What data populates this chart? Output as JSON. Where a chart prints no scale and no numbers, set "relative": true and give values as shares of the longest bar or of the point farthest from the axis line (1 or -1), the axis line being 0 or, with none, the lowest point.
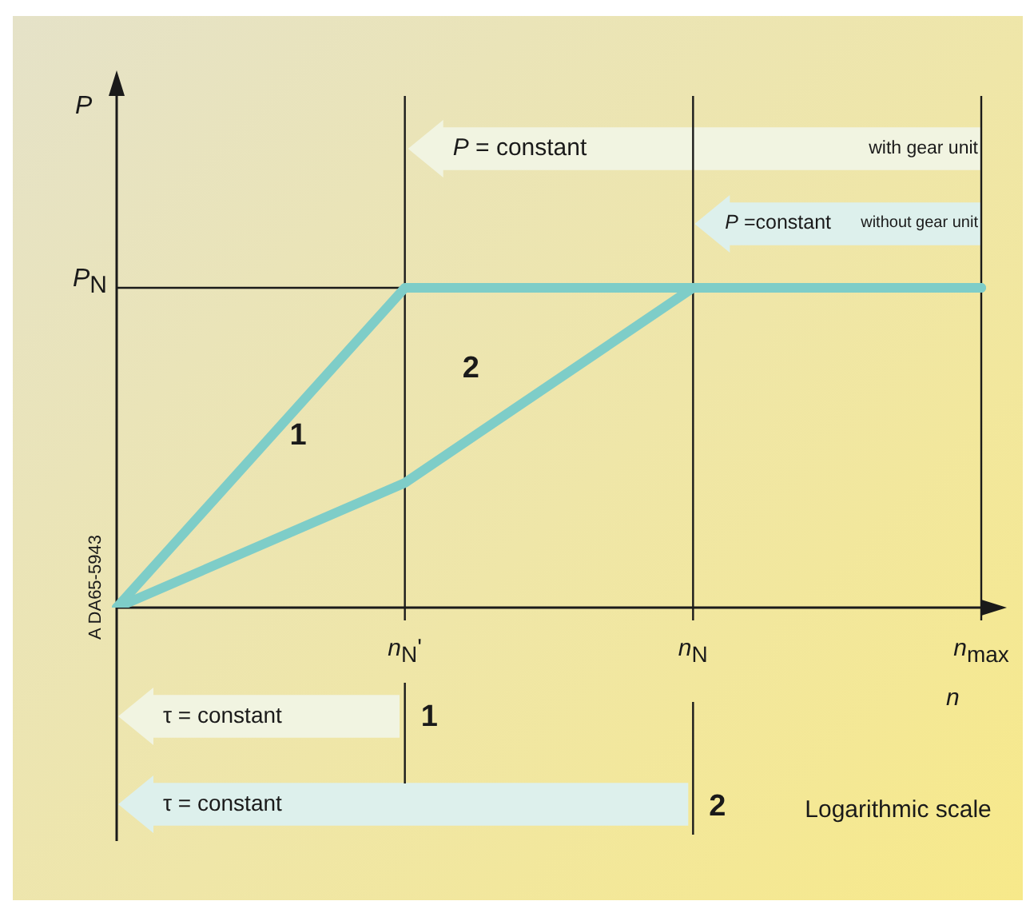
{
  "chart_data": {
    "type": "line",
    "xlabel": "n",
    "relative": true,
    "categories": [
      null,
      "n$_{N}$'",
      "n$_{N}$",
      "n$_{max}$"
    ],
    "grid": "x",
    "legend": false,
    "marker": "none",
    "line_style": "solid",
    "ref_lines": [
      {
        "axis": "y",
        "value": 1,
        "label": "P$_{N}$"
      }
    ],
    "series": [
      {
        "color": "#7ecdc8",
        "values": [
          0,
          1,
          1,
          1
        ]
      },
      {
        "color": "#7ecdc8",
        "values": [
          0,
          0.39,
          1,
          1
        ]
      }
    ],
    "annotations": [
      "P = constant",
      "with gear unit",
      "P =constant",
      "without gear unit",
      "τ = constant",
      "1",
      "τ = constant",
      "2",
      "Logarithmic scale",
      "A DA65-5943",
      "1",
      "2",
      "P"
    ]
  }
}
